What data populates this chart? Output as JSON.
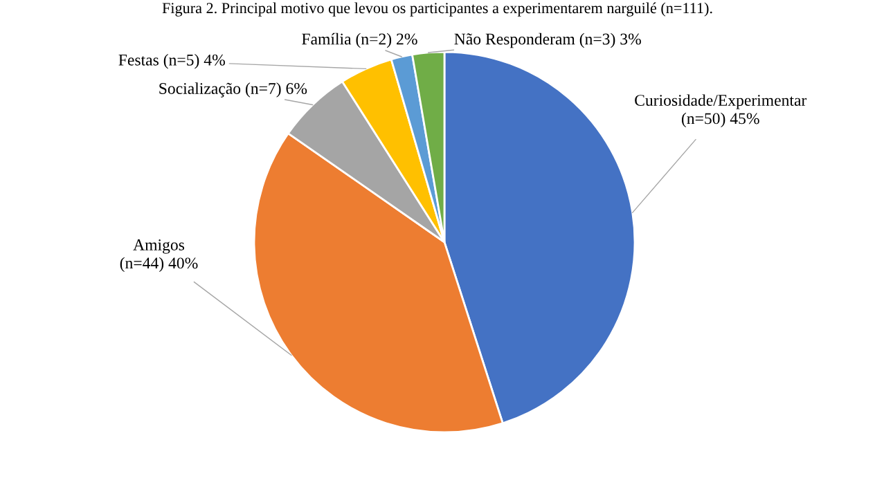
{
  "chart_data": {
    "type": "pie",
    "title": "Figura 2. Principal motivo que levou os participantes a experimentarem narguilé (n=111).",
    "categories": [
      "Curiosidade/Experimentar",
      "Amigos",
      "Socialização",
      "Festas",
      "Família",
      "Não Responderam"
    ],
    "values": [
      50,
      44,
      7,
      5,
      2,
      3
    ],
    "value_labels": [
      "(n=50) 45%",
      "(n=44) 40%",
      "(n=7) 6%",
      "(n=5) 4%",
      "(n=2) 2%",
      "(n=3) 3%"
    ],
    "colors": [
      "#4472c4",
      "#ed7d31",
      "#a5a5a5",
      "#ffc000",
      "#5b9bd5",
      "#70ad47"
    ],
    "legend": false
  }
}
